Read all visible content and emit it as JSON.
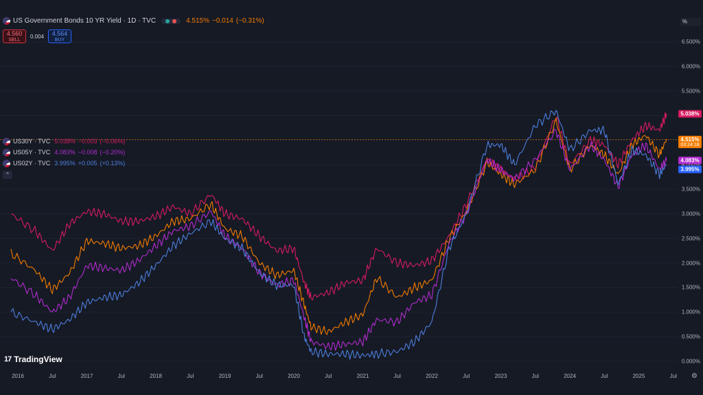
{
  "header": {
    "title": "US Government Bonds 10 YR Yield · 1D · TVC",
    "value": "4.515%",
    "change": "−0.014",
    "change_pct": "(−0.31%)"
  },
  "trade": {
    "sell_price": "4.560",
    "sell_label": "SELL",
    "spread": "0.004",
    "buy_price": "4.564",
    "buy_label": "BUY"
  },
  "legend": [
    {
      "symbol": "US30Y · TVC",
      "value": "5.038%",
      "change": "−0.003",
      "change_pct": "(−0.06%)",
      "color": "#d81b60"
    },
    {
      "symbol": "US05Y · TVC",
      "value": "4.083%",
      "change": "−0.008",
      "change_pct": "(−0.20%)",
      "color": "#b12ccf"
    },
    {
      "symbol": "US02Y · TVC",
      "value": "3.995%",
      "change": "+0.005",
      "change_pct": "(+0.13%)",
      "color": "#4c7fde"
    }
  ],
  "collapse_label": "⌃",
  "price_axis": {
    "unit": "%",
    "ticks": [
      "6.500%",
      "6.000%",
      "5.500%",
      "5.000%",
      "4.500%",
      "4.000%",
      "3.500%",
      "3.000%",
      "2.500%",
      "2.000%",
      "1.500%",
      "1.000%",
      "0.500%",
      "0.000%"
    ],
    "labels": [
      {
        "text": "5.038%",
        "color": "#d81b60"
      },
      {
        "text": "4.515%",
        "sub": "03:24:18",
        "color": "#f57c00"
      },
      {
        "text": "4.083%",
        "color": "#b12ccf"
      },
      {
        "text": "3.995%",
        "color": "#2962ff"
      }
    ]
  },
  "time_axis": {
    "ticks": [
      "2016",
      "Jul",
      "2017",
      "Jul",
      "2018",
      "Jul",
      "2019",
      "Jul",
      "2020",
      "Jul",
      "2021",
      "Jul",
      "2022",
      "Jul",
      "2023",
      "Jul",
      "2024",
      "Jul",
      "2025",
      "Jul"
    ]
  },
  "logo": {
    "mark": "17",
    "text": "TradingView"
  },
  "chart_data": {
    "type": "line",
    "ylim": [
      0,
      6.75
    ],
    "x": [
      2015.9,
      2016.25,
      2016.5,
      2016.75,
      2017.0,
      2017.25,
      2017.5,
      2017.75,
      2018.0,
      2018.25,
      2018.5,
      2018.8,
      2019.0,
      2019.25,
      2019.5,
      2019.75,
      2020.0,
      2020.15,
      2020.25,
      2020.5,
      2020.75,
      2021.0,
      2021.2,
      2021.5,
      2021.75,
      2022.0,
      2022.25,
      2022.5,
      2022.8,
      2023.0,
      2023.2,
      2023.5,
      2023.8,
      2024.0,
      2024.3,
      2024.5,
      2024.7,
      2024.9,
      2025.1,
      2025.3,
      2025.4
    ],
    "series": [
      {
        "name": "US30Y",
        "color": "#d81b60",
        "values": [
          3.0,
          2.65,
          2.25,
          2.8,
          3.05,
          3.0,
          2.85,
          2.85,
          2.95,
          3.15,
          3.0,
          3.4,
          3.0,
          2.9,
          2.55,
          2.25,
          2.3,
          1.6,
          1.3,
          1.4,
          1.6,
          1.65,
          2.3,
          2.0,
          1.95,
          2.05,
          2.55,
          3.2,
          4.1,
          3.9,
          3.7,
          3.95,
          5.0,
          4.0,
          4.5,
          4.4,
          4.0,
          4.5,
          4.8,
          4.7,
          5.04
        ]
      },
      {
        "name": "US10Y",
        "color": "#f57c00",
        "values": [
          2.2,
          1.85,
          1.45,
          1.8,
          2.45,
          2.4,
          2.3,
          2.35,
          2.55,
          2.85,
          2.9,
          3.2,
          2.7,
          2.55,
          2.0,
          1.75,
          1.85,
          1.15,
          0.7,
          0.6,
          0.8,
          0.95,
          1.7,
          1.3,
          1.5,
          1.65,
          2.5,
          3.05,
          4.05,
          3.8,
          3.6,
          3.9,
          4.9,
          3.9,
          4.4,
          4.2,
          3.8,
          4.4,
          4.6,
          4.2,
          4.52
        ]
      },
      {
        "name": "US05Y",
        "color": "#b12ccf",
        "values": [
          1.7,
          1.35,
          1.0,
          1.3,
          1.95,
          1.9,
          1.85,
          2.05,
          2.35,
          2.65,
          2.75,
          3.05,
          2.55,
          2.3,
          1.8,
          1.55,
          1.65,
          0.9,
          0.4,
          0.3,
          0.35,
          0.4,
          0.85,
          0.8,
          1.2,
          1.35,
          2.4,
          3.0,
          4.1,
          3.9,
          3.7,
          4.1,
          4.7,
          3.9,
          4.4,
          4.1,
          3.55,
          4.2,
          4.4,
          3.9,
          4.08
        ]
      },
      {
        "name": "US02Y",
        "color": "#4c7fde",
        "values": [
          1.0,
          0.8,
          0.65,
          0.85,
          1.2,
          1.3,
          1.35,
          1.6,
          1.95,
          2.35,
          2.6,
          2.85,
          2.5,
          2.3,
          1.8,
          1.55,
          1.55,
          0.5,
          0.2,
          0.15,
          0.15,
          0.12,
          0.15,
          0.2,
          0.4,
          0.8,
          2.3,
          3.0,
          4.4,
          4.4,
          4.0,
          4.8,
          5.1,
          4.3,
          4.7,
          4.7,
          3.6,
          4.3,
          4.2,
          3.8,
          4.0
        ]
      }
    ]
  }
}
